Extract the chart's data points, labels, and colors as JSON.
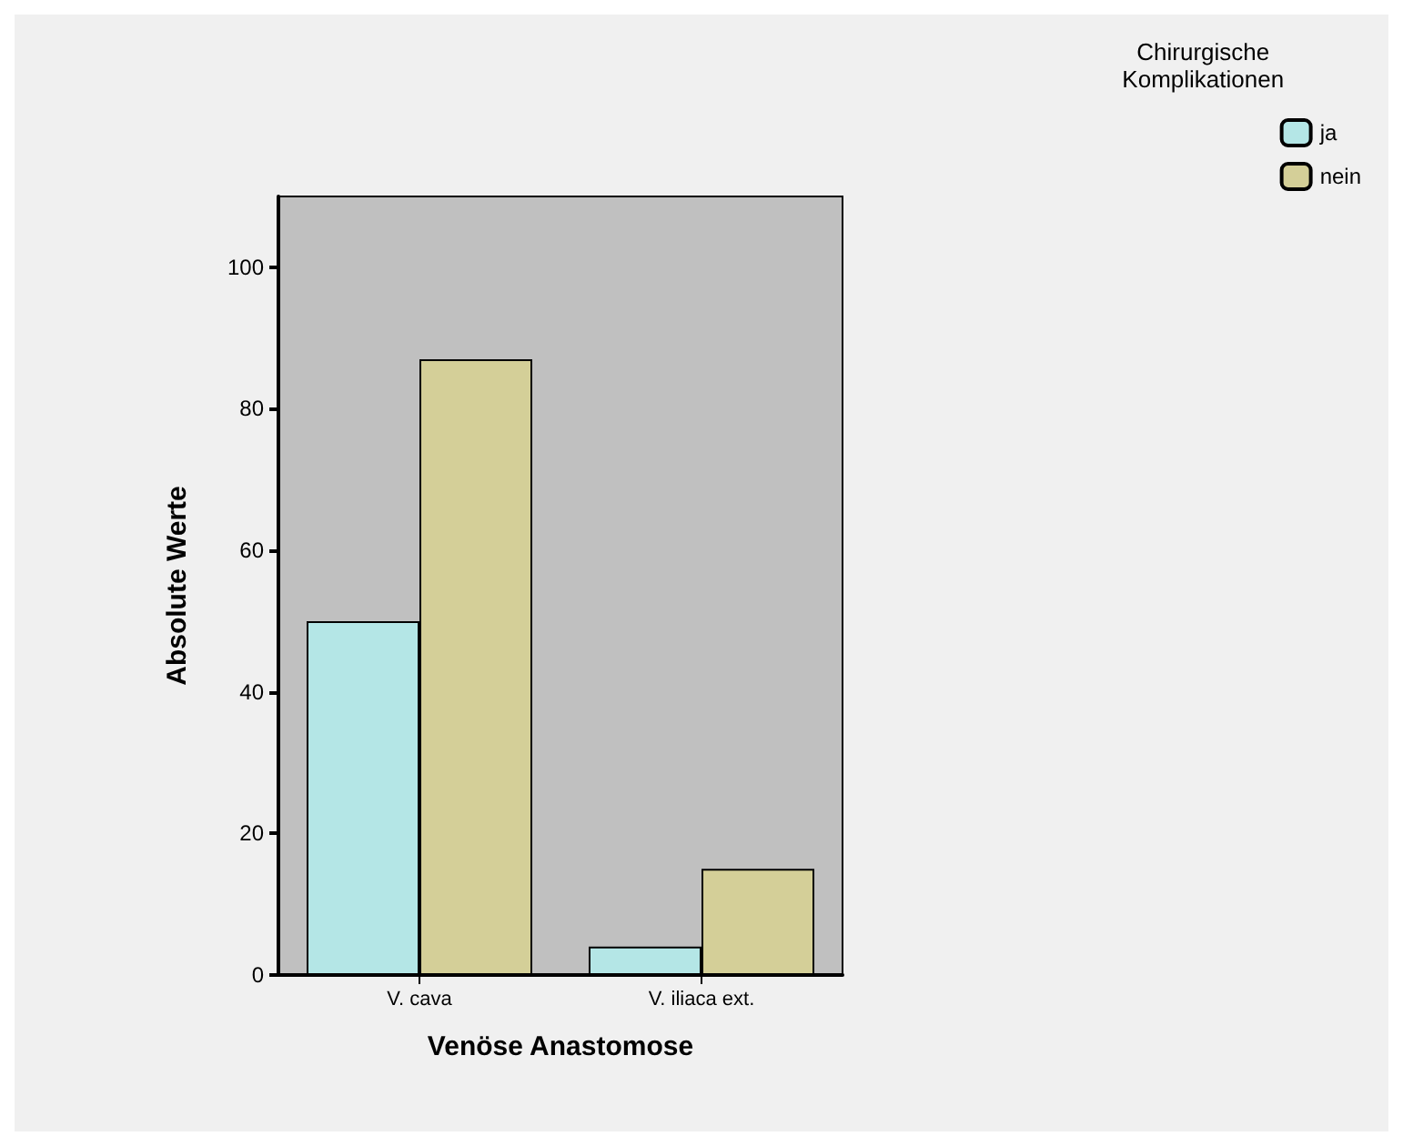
{
  "chart_data": {
    "type": "bar",
    "xlabel": "Venöse Anastomose",
    "ylabel": "Absolute Werte",
    "legend_title": "Chirurgische\nKomplikationen",
    "categories": [
      "V. cava",
      "V. iliaca ext."
    ],
    "series": [
      {
        "name": "ja",
        "color": "#b4e6e6",
        "values": [
          50,
          4
        ]
      },
      {
        "name": "nein",
        "color": "#d4cf98",
        "values": [
          87,
          15
        ]
      }
    ],
    "ylim": [
      0,
      110
    ],
    "yticks": [
      0,
      20,
      40,
      60,
      80,
      100
    ],
    "grid": false,
    "legend": "top right"
  }
}
